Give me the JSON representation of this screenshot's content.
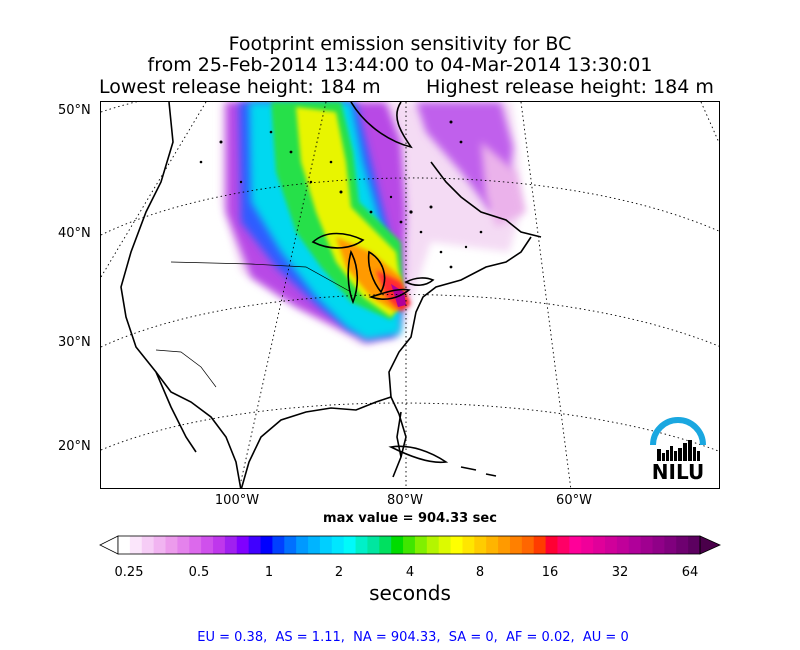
{
  "title": {
    "line1": "Footprint emission sensitivity for BC",
    "line2": "from 25-Feb-2014 13:44:00 to 04-Mar-2014 13:30:01",
    "release_low": "Lowest release height: 184 m",
    "release_high": "Highest release height: 184 m"
  },
  "map": {
    "lat_labels": [
      "50°N",
      "40°N",
      "30°N",
      "20°N"
    ],
    "lon_labels": [
      "100°W",
      "80°W",
      "60°W"
    ],
    "max_value": "max value = 904.33 sec",
    "logo_text": "NILU"
  },
  "colorbar": {
    "ticks": [
      "0.25",
      "0.5",
      "1",
      "2",
      "4",
      "8",
      "16",
      "32",
      "64"
    ],
    "unit": "seconds",
    "colors": [
      "#ffffff",
      "#fbe6fb",
      "#f6cdf6",
      "#f1b4f1",
      "#ec9bec",
      "#e482ec",
      "#dc69ec",
      "#cf50ec",
      "#bf37ec",
      "#a020f0",
      "#8000ff",
      "#4000ff",
      "#0000ff",
      "#0040ff",
      "#0070ff",
      "#0099ff",
      "#00b4ff",
      "#00cfff",
      "#00e6ff",
      "#00fafa",
      "#00f0c8",
      "#00e6a0",
      "#00e060",
      "#00dc00",
      "#40e600",
      "#80f000",
      "#b4f500",
      "#dcfa00",
      "#ffff00",
      "#ffe600",
      "#ffcc00",
      "#ffb400",
      "#ff9a00",
      "#ff8000",
      "#ff6600",
      "#ff3c00",
      "#ff0033",
      "#ff0066",
      "#ff0099",
      "#f0009a",
      "#e0009a",
      "#d0009a",
      "#c0009a",
      "#b0009a",
      "#a00090",
      "#900088",
      "#80007e",
      "#6e0070",
      "#5c0060"
    ]
  },
  "footer": "EU = 0.38,  AS = 1.11,  NA = 904.33,  SA = 0,  AF = 0.02,  AU = 0"
}
